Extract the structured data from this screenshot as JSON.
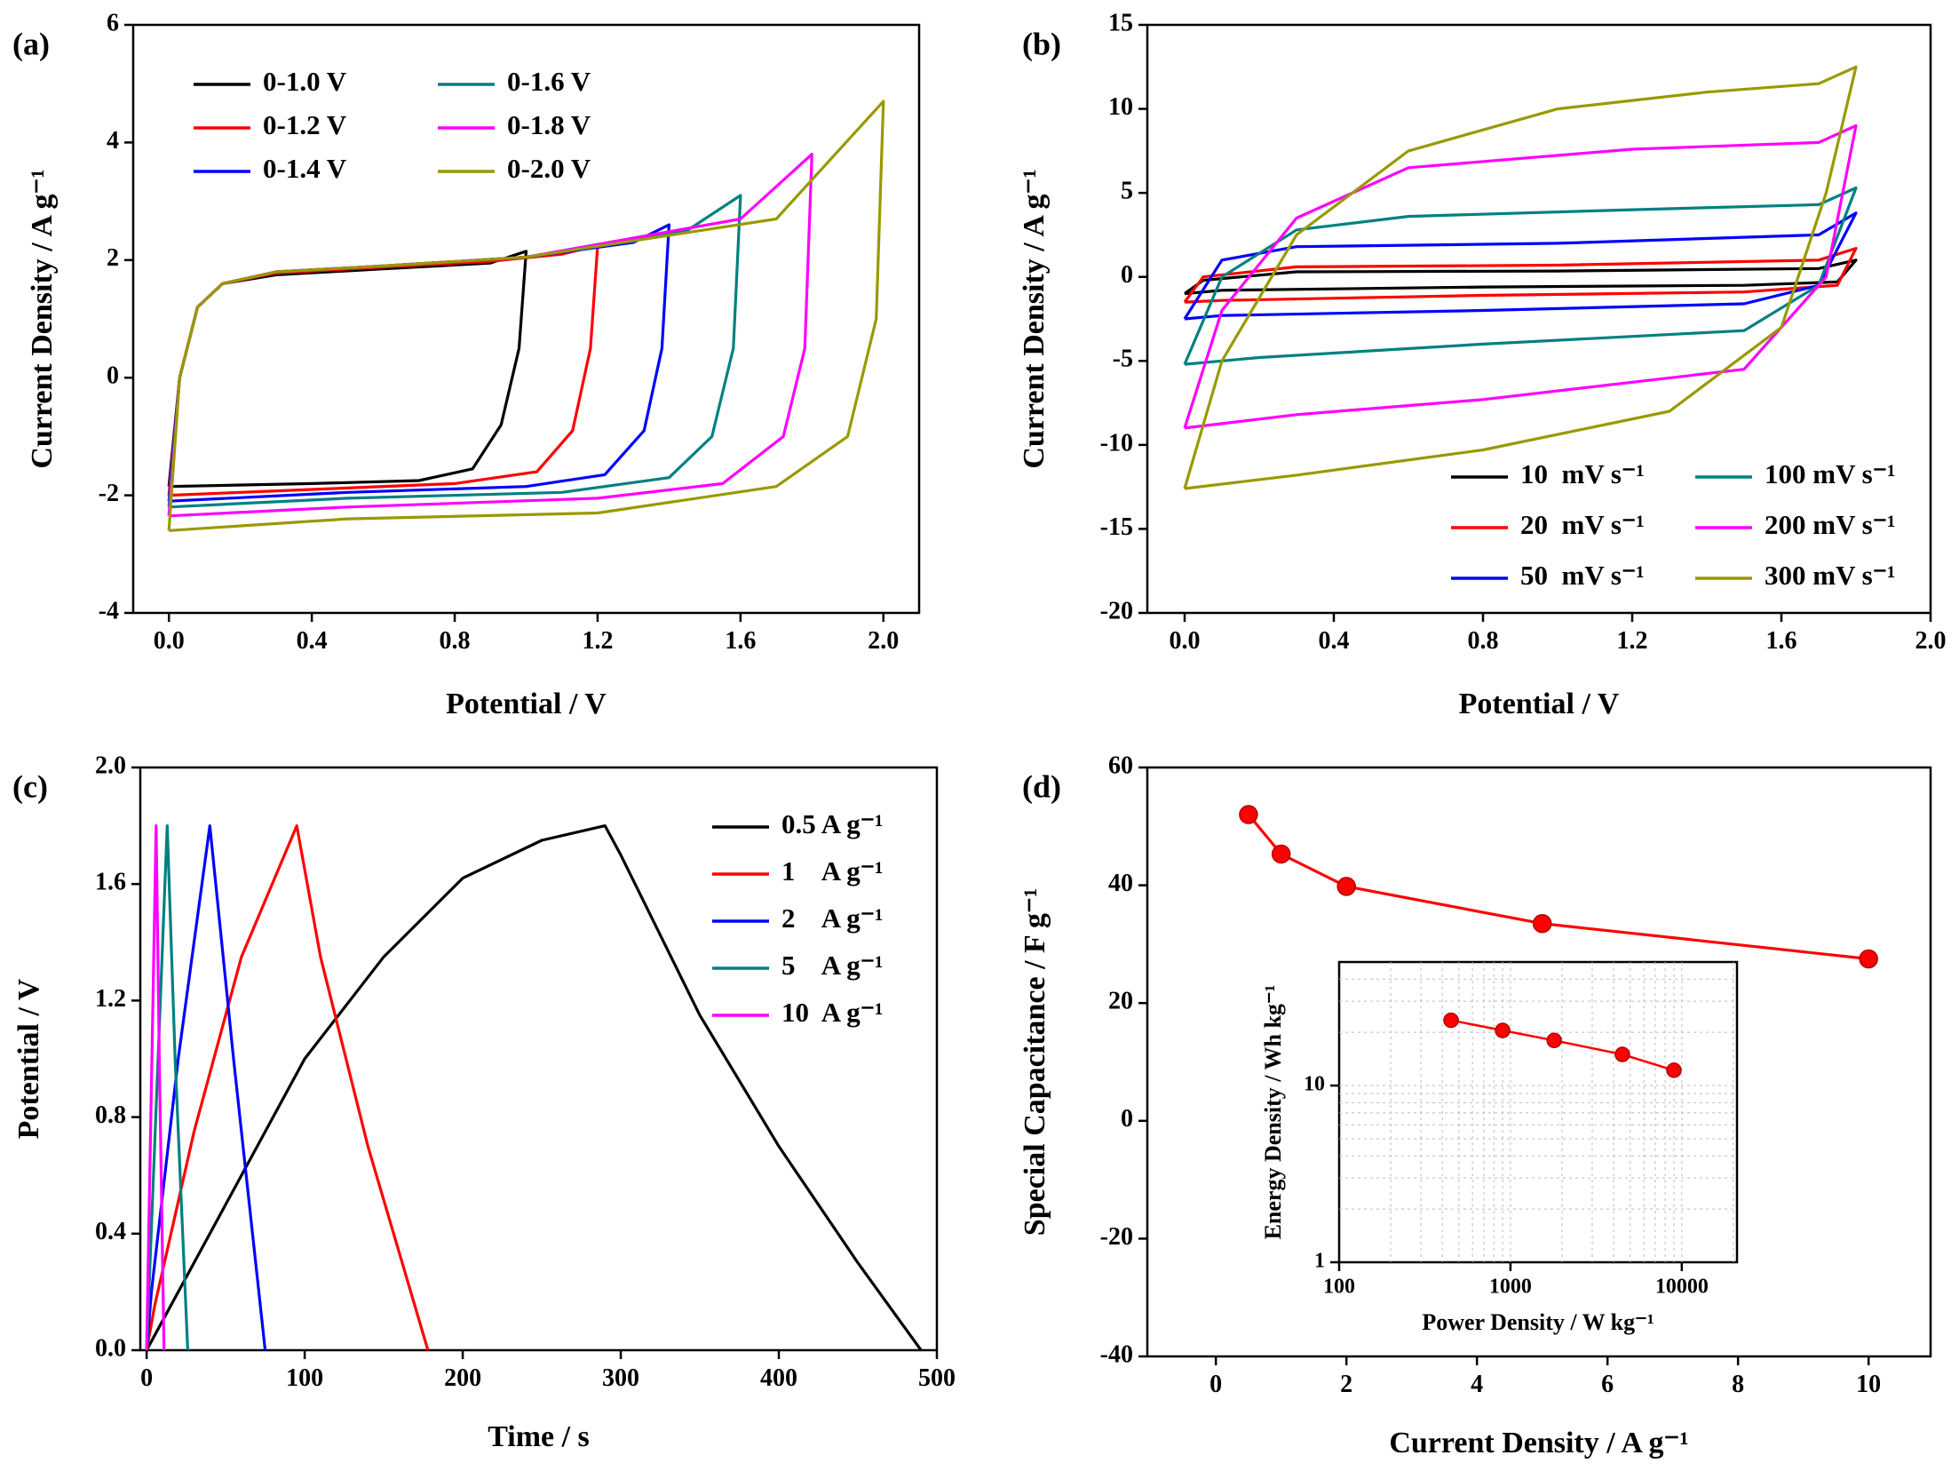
{
  "chart_data": [
    {
      "type": "line",
      "label": "(a)",
      "xlabel": "Potential / V",
      "ylabel": "Current Density / A g⁻¹",
      "xlim": [
        -0.1,
        2.1
      ],
      "xticks": [
        {
          "value": 0,
          "label": "0.0"
        },
        {
          "value": 0.4,
          "label": "0.4"
        },
        {
          "value": 0.8,
          "label": "0.8"
        },
        {
          "value": 1.2,
          "label": "1.2"
        },
        {
          "value": 1.6,
          "label": "1.6"
        },
        {
          "value": 2.0,
          "label": "2.0"
        }
      ],
      "ylim": [
        -4,
        6
      ],
      "yticks": [
        -4,
        -2,
        0,
        2,
        4,
        6
      ],
      "legend": "upper left",
      "legend_columns": 2,
      "series": [
        {
          "name": "0-1.0 V",
          "color": "#000000",
          "x": [
            0,
            0.03,
            0.08,
            0.15,
            0.3,
            0.6,
            0.9,
            1.0,
            0.98,
            0.93,
            0.85,
            0.7,
            0.4,
            0
          ],
          "values": [
            -1.85,
            0,
            1.2,
            1.6,
            1.75,
            1.85,
            1.95,
            2.15,
            0.5,
            -0.8,
            -1.55,
            -1.75,
            -1.8,
            -1.85
          ]
        },
        {
          "name": "0-1.2 V",
          "color": "#ff0000",
          "x": [
            0,
            0.03,
            0.08,
            0.15,
            0.3,
            0.6,
            0.9,
            1.1,
            1.2,
            1.18,
            1.13,
            1.03,
            0.8,
            0.4,
            0
          ],
          "values": [
            -2.0,
            0,
            1.2,
            1.6,
            1.78,
            1.88,
            1.98,
            2.1,
            2.25,
            0.5,
            -0.9,
            -1.6,
            -1.8,
            -1.9,
            -2.0
          ]
        },
        {
          "name": "0-1.4 V",
          "color": "#0000ff",
          "x": [
            0,
            0.03,
            0.08,
            0.15,
            0.3,
            0.6,
            1.0,
            1.3,
            1.4,
            1.38,
            1.33,
            1.22,
            1.0,
            0.5,
            0
          ],
          "values": [
            -2.1,
            0,
            1.2,
            1.6,
            1.8,
            1.9,
            2.05,
            2.3,
            2.6,
            0.5,
            -0.9,
            -1.65,
            -1.85,
            -1.95,
            -2.1
          ]
        },
        {
          "name": "0-1.6 V",
          "color": "#008080",
          "x": [
            0,
            0.03,
            0.08,
            0.15,
            0.3,
            0.6,
            1.0,
            1.45,
            1.6,
            1.58,
            1.52,
            1.4,
            1.1,
            0.5,
            0
          ],
          "values": [
            -2.2,
            0,
            1.2,
            1.6,
            1.8,
            1.9,
            2.05,
            2.5,
            3.1,
            0.5,
            -1.0,
            -1.7,
            -1.95,
            -2.05,
            -2.2
          ]
        },
        {
          "name": "0-1.8 V",
          "color": "#ff00ff",
          "x": [
            0,
            0.03,
            0.08,
            0.15,
            0.3,
            0.6,
            1.0,
            1.6,
            1.8,
            1.78,
            1.72,
            1.55,
            1.2,
            0.5,
            0
          ],
          "values": [
            -2.35,
            0,
            1.2,
            1.6,
            1.8,
            1.9,
            2.05,
            2.7,
            3.8,
            0.5,
            -1.0,
            -1.8,
            -2.05,
            -2.2,
            -2.35
          ]
        },
        {
          "name": "0-2.0 V",
          "color": "#999900",
          "x": [
            0,
            0.03,
            0.08,
            0.15,
            0.3,
            0.6,
            1.0,
            1.7,
            2.0,
            1.98,
            1.9,
            1.7,
            1.2,
            0.5,
            0
          ],
          "values": [
            -2.6,
            0,
            1.2,
            1.6,
            1.8,
            1.9,
            2.05,
            2.7,
            4.7,
            1.0,
            -1.0,
            -1.85,
            -2.3,
            -2.4,
            -2.6
          ]
        }
      ]
    },
    {
      "type": "line",
      "label": "(b)",
      "xlabel": "Potential / V",
      "ylabel": "Current Density / A g⁻¹",
      "xlim": [
        -0.1,
        2.0
      ],
      "xticks": [
        {
          "value": 0,
          "label": "0.0"
        },
        {
          "value": 0.4,
          "label": "0.4"
        },
        {
          "value": 0.8,
          "label": "0.8"
        },
        {
          "value": 1.2,
          "label": "1.2"
        },
        {
          "value": 1.6,
          "label": "1.6"
        },
        {
          "value": 2.0,
          "label": "2.0"
        }
      ],
      "ylim": [
        -20,
        15
      ],
      "yticks": [
        -20,
        -15,
        -10,
        -5,
        0,
        5,
        10,
        15
      ],
      "legend": "lower right",
      "legend_columns": 2,
      "series": [
        {
          "name": "10  mV s⁻¹",
          "color": "#000000",
          "x": [
            0,
            0.05,
            0.3,
            1.0,
            1.7,
            1.8,
            1.75,
            1.5,
            0.8,
            0.1,
            0
          ],
          "values": [
            -1.0,
            -0.2,
            0.3,
            0.35,
            0.5,
            1.0,
            -0.3,
            -0.5,
            -0.6,
            -0.8,
            -1.0
          ]
        },
        {
          "name": "20  mV s⁻¹",
          "color": "#ff0000",
          "x": [
            0,
            0.05,
            0.3,
            1.0,
            1.7,
            1.8,
            1.75,
            1.5,
            0.8,
            0.1,
            0
          ],
          "values": [
            -1.5,
            0,
            0.6,
            0.7,
            1.0,
            1.7,
            -0.5,
            -0.9,
            -1.1,
            -1.4,
            -1.5
          ]
        },
        {
          "name": "50  mV s⁻¹",
          "color": "#0000ff",
          "x": [
            0,
            0.1,
            0.3,
            1.0,
            1.7,
            1.8,
            1.7,
            1.5,
            0.8,
            0.1,
            0
          ],
          "values": [
            -2.5,
            1.0,
            1.8,
            2.0,
            2.5,
            3.8,
            -0.5,
            -1.6,
            -2.0,
            -2.3,
            -2.5
          ]
        },
        {
          "name": "100 mV s⁻¹",
          "color": "#008080",
          "x": [
            0,
            0.1,
            0.3,
            0.6,
            1.2,
            1.7,
            1.8,
            1.7,
            1.5,
            0.8,
            0.2,
            0
          ],
          "values": [
            -5.2,
            0,
            2.8,
            3.6,
            4.0,
            4.3,
            5.3,
            -0.5,
            -3.2,
            -4.0,
            -4.8,
            -5.2
          ]
        },
        {
          "name": "200 mV s⁻¹",
          "color": "#ff00ff",
          "x": [
            0,
            0.1,
            0.3,
            0.6,
            1.2,
            1.7,
            1.8,
            1.72,
            1.5,
            0.8,
            0.3,
            0
          ],
          "values": [
            -9,
            -2,
            3.5,
            6.5,
            7.6,
            8.0,
            9.0,
            0,
            -5.5,
            -7.3,
            -8.2,
            -9
          ]
        },
        {
          "name": "300 mV s⁻¹",
          "color": "#999900",
          "x": [
            0,
            0.1,
            0.3,
            0.6,
            1.0,
            1.4,
            1.7,
            1.8,
            1.72,
            1.6,
            1.3,
            0.8,
            0.3,
            0
          ],
          "values": [
            -12.6,
            -5,
            2.5,
            7.5,
            10.0,
            11.0,
            11.5,
            12.5,
            5,
            -3,
            -8,
            -10.3,
            -11.8,
            -12.6
          ]
        }
      ]
    },
    {
      "type": "line",
      "label": "(c)",
      "xlabel": "Time / s",
      "ylabel": "Potential / V",
      "xlim": [
        -4,
        500
      ],
      "xticks": [
        0,
        100,
        200,
        300,
        400,
        500
      ],
      "ylim": [
        0,
        2.0
      ],
      "yticks": [
        {
          "value": 0,
          "label": "0.0"
        },
        {
          "value": 0.4,
          "label": "0.4"
        },
        {
          "value": 0.8,
          "label": "0.8"
        },
        {
          "value": 1.2,
          "label": "1.2"
        },
        {
          "value": 1.6,
          "label": "1.6"
        },
        {
          "value": 2.0,
          "label": "2.0"
        }
      ],
      "legend": "center right",
      "legend_columns": 1,
      "series": [
        {
          "name": "0.5 A g⁻¹",
          "color": "#000000",
          "x": [
            0,
            10,
            50,
            100,
            150,
            200,
            250,
            290,
            300,
            350,
            400,
            450,
            490
          ],
          "values": [
            0,
            0.1,
            0.5,
            1.0,
            1.35,
            1.62,
            1.75,
            1.8,
            1.7,
            1.15,
            0.7,
            0.3,
            0
          ]
        },
        {
          "name": "1    A g⁻¹",
          "color": "#ff0000",
          "x": [
            0,
            5,
            30,
            60,
            95,
            110,
            140,
            178
          ],
          "values": [
            0,
            0.15,
            0.75,
            1.35,
            1.8,
            1.35,
            0.7,
            0
          ]
        },
        {
          "name": "2    A g⁻¹",
          "color": "#0000ff",
          "x": [
            0,
            3,
            20,
            40,
            55,
            75
          ],
          "values": [
            0,
            0.2,
            1.0,
            1.8,
            1.0,
            0
          ]
        },
        {
          "name": "5    A g⁻¹",
          "color": "#008080",
          "x": [
            0,
            13,
            18,
            26
          ],
          "values": [
            0,
            1.8,
            1.0,
            0
          ]
        },
        {
          "name": "10  A g⁻¹",
          "color": "#ff00ff",
          "x": [
            0,
            6,
            8,
            11
          ],
          "values": [
            0,
            1.8,
            1.0,
            0
          ]
        }
      ]
    },
    {
      "type": "line",
      "label": "(d)",
      "xlabel": "Current Density / A g⁻¹",
      "ylabel": "Special Capacitance / F g⁻¹",
      "xlim": [
        -1.05,
        10.95
      ],
      "xticks": [
        0,
        2,
        4,
        6,
        8,
        10
      ],
      "ylim": [
        -40,
        60
      ],
      "yticks": [
        -40,
        -20,
        0,
        20,
        40,
        60
      ],
      "markers": true,
      "x": [
        0.5,
        1,
        2,
        5,
        10
      ],
      "series": [
        {
          "color": "#ff0000",
          "values": [
            52,
            45.3,
            39.8,
            33.5,
            27.5
          ]
        }
      ]
    },
    {
      "type": "line",
      "xlabel": "Power Density / W kg⁻¹",
      "ylabel": "Energy Density / Wh kg⁻¹",
      "xscale": "log",
      "yscale": "log",
      "grid": true,
      "markers": true,
      "xlim": [
        100,
        21000
      ],
      "xticks": [
        100,
        1000,
        10000
      ],
      "ylim": [
        1,
        50
      ],
      "yticks": [
        1,
        10
      ],
      "x": [
        450,
        900,
        1800,
        4500,
        9000
      ],
      "series": [
        {
          "color": "#ff0000",
          "values": [
            23.4,
            20.5,
            18,
            15,
            12.2
          ]
        }
      ]
    }
  ]
}
